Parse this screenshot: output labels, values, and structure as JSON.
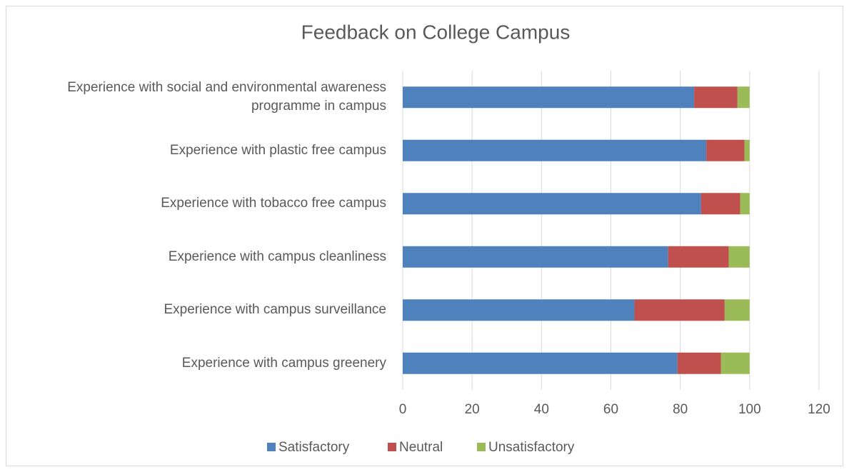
{
  "chart_data": {
    "type": "stacked_barh",
    "title": "Feedback on College Campus",
    "categories": [
      "Experience with campus greenery",
      "Experience with campus surveillance",
      "Experience with campus cleanliness",
      "Experience with tobacco free campus",
      "Experience with plastic free campus",
      "Experience with social and environmental awareness programme in campus"
    ],
    "series": [
      {
        "name": "Satisfactory",
        "color": "#4f81bd",
        "values": [
          79.2,
          66.8,
          76.5,
          86,
          87.5,
          84
        ]
      },
      {
        "name": "Neutral",
        "color": "#c0504d",
        "values": [
          12.5,
          26,
          17.5,
          11.3,
          11,
          12.5
        ]
      },
      {
        "name": "Unsatisfactory",
        "color": "#9bbb59",
        "values": [
          8.3,
          7.2,
          6,
          2.7,
          1.5,
          3.5
        ]
      }
    ],
    "xlim": [
      0,
      120
    ],
    "xticks": [
      0,
      20,
      40,
      60,
      80,
      100,
      120
    ],
    "grid": true,
    "legend": "bottom"
  }
}
